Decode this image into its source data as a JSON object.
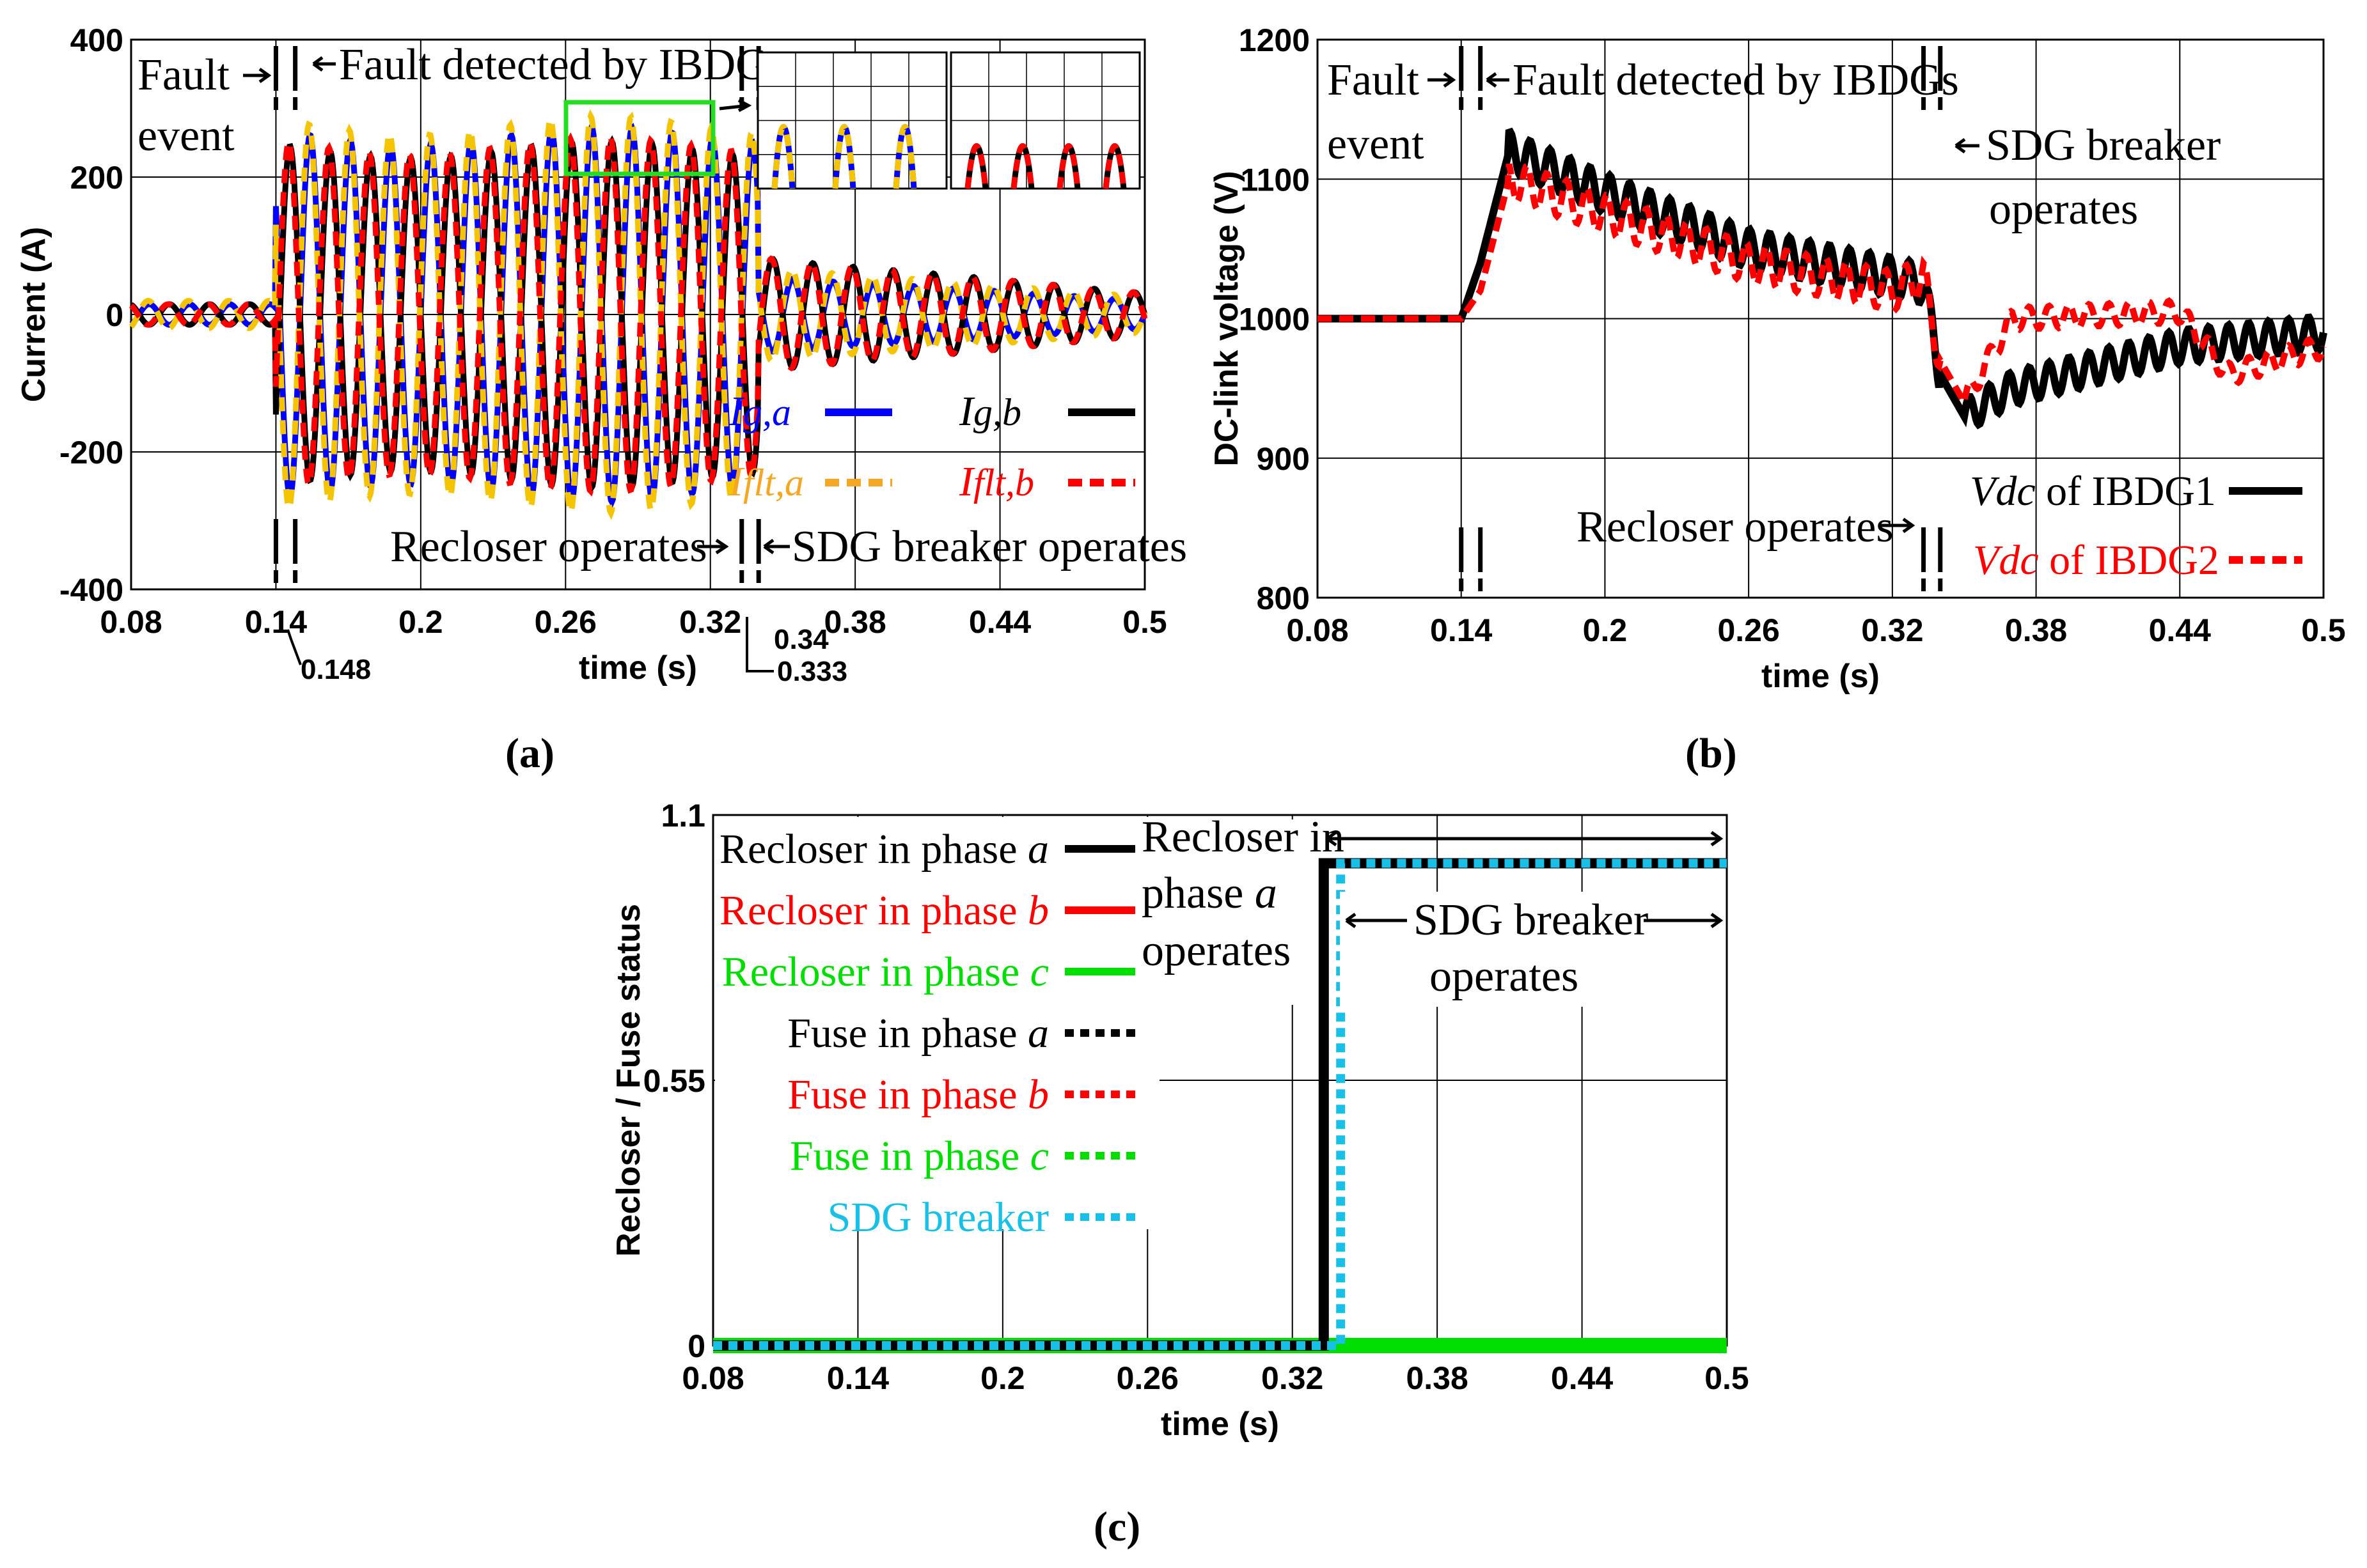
{
  "chart_data": [
    {
      "id": "a",
      "type": "line",
      "caption": "a",
      "xlabel": "time (s)",
      "ylabel": "Current (A)",
      "xlim": [
        0.08,
        0.5
      ],
      "ylim": [
        -400,
        400
      ],
      "xticks": [
        "0.08",
        "0.14",
        "0.2",
        "0.26",
        "0.32",
        "0.38",
        "0.44",
        "0.5"
      ],
      "yticks": [
        "400",
        "200",
        "0",
        "-200",
        "-400"
      ],
      "extra_ticks": [
        "0.148",
        "0.333",
        "0.34"
      ],
      "annotations": {
        "fault_event_1": "Fault",
        "fault_event_2": "event",
        "fault_detected": "Fault detected by IBDGs",
        "recloser": "Recloser operates",
        "sdg": "SDG breaker operates"
      },
      "events": [
        0.14,
        0.148,
        0.333,
        0.34
      ],
      "legend": [
        {
          "sym": "I",
          "sub": "g,a",
          "color": "#0000ff",
          "style": "solid"
        },
        {
          "sym": "I",
          "sub": "g,b",
          "color": "#000000",
          "style": "solid"
        },
        {
          "sym": "I",
          "sub": "flt,a",
          "color": "#f5a623",
          "style": "dashed"
        },
        {
          "sym": "I",
          "sub": "flt,b",
          "color": "#ff0000",
          "style": "dashed"
        }
      ],
      "series": [
        {
          "name": "Ig,a",
          "color": "#0000ff",
          "prefault_amp": 15,
          "fault_amp": 260,
          "postfault_amp": 20
        },
        {
          "name": "Ig,b",
          "color": "#000000",
          "prefault_amp": 15,
          "fault_amp": 240,
          "postfault_amp": 30
        },
        {
          "name": "Iflt,a",
          "color": "#f5c400",
          "prefault_amp": 20,
          "fault_amp": 275,
          "postfault_amp": 25
        },
        {
          "name": "Iflt,b",
          "color": "#ff0000",
          "prefault_amp": 15,
          "fault_amp": 245,
          "postfault_amp": 30
        }
      ],
      "frequency_hz": 60
    },
    {
      "id": "b",
      "type": "line",
      "caption": "b",
      "xlabel": "time (s)",
      "ylabel": "DC-link voltage (V)",
      "xlim": [
        0.08,
        0.5
      ],
      "ylim": [
        800,
        1200
      ],
      "xticks": [
        "0.08",
        "0.14",
        "0.2",
        "0.26",
        "0.32",
        "0.38",
        "0.44",
        "0.5"
      ],
      "yticks": [
        "1200",
        "1100",
        "1000",
        "900",
        "800"
      ],
      "annotations": {
        "fault_event_1": "Fault",
        "fault_event_2": "event",
        "fault_detected": "Fault detected by IBDGs",
        "sdg_1": "SDG breaker",
        "sdg_2": "operates",
        "recloser": "Recloser operates"
      },
      "events": [
        0.14,
        0.148,
        0.333,
        0.34
      ],
      "legend": [
        {
          "sym": "Vdc",
          "rest": " of IBDG1",
          "color": "#000000",
          "style": "solid"
        },
        {
          "sym": "Vdc",
          "rest": " of IBDG2",
          "color": "#ff0000",
          "style": "dashed"
        }
      ],
      "series": [
        {
          "name": "Vdc of IBDG1",
          "color": "#000000",
          "points": [
            [
              0.08,
              1000
            ],
            [
              0.14,
              1000
            ],
            [
              0.148,
              1040
            ],
            [
              0.16,
              1120
            ],
            [
              0.2,
              1090
            ],
            [
              0.26,
              1050
            ],
            [
              0.32,
              1030
            ],
            [
              0.333,
              1025
            ],
            [
              0.34,
              960
            ],
            [
              0.35,
              930
            ],
            [
              0.37,
              950
            ],
            [
              0.44,
              980
            ],
            [
              0.5,
              990
            ]
          ]
        },
        {
          "name": "Vdc of IBDG2",
          "color": "#ff0000",
          "points": [
            [
              0.08,
              1000
            ],
            [
              0.14,
              1000
            ],
            [
              0.148,
              1020
            ],
            [
              0.16,
              1100
            ],
            [
              0.2,
              1075
            ],
            [
              0.26,
              1040
            ],
            [
              0.32,
              1020
            ],
            [
              0.333,
              1030
            ],
            [
              0.34,
              970
            ],
            [
              0.35,
              940
            ],
            [
              0.37,
              1000
            ],
            [
              0.44,
              1005
            ],
            [
              0.46,
              960
            ],
            [
              0.5,
              980
            ]
          ]
        }
      ]
    },
    {
      "id": "c",
      "type": "line",
      "caption": "c",
      "xlabel": "time (s)",
      "ylabel": "Recloser / Fuse status",
      "xlim": [
        0.08,
        0.5
      ],
      "ylim": [
        0,
        1.1
      ],
      "xticks": [
        "0.08",
        "0.14",
        "0.2",
        "0.26",
        "0.32",
        "0.38",
        "0.44",
        "0.5"
      ],
      "yticks": [
        "1.1",
        "0.55",
        "0"
      ],
      "annotations": {
        "recloser_1": "Recloser in",
        "recloser_2": "phase",
        "recloser_2b": "a",
        "recloser_3": "operates",
        "sdg_1": "SDG breaker",
        "sdg_2": "operates"
      },
      "legend": [
        {
          "pre": "Recloser in phase ",
          "ph": "a",
          "color": "#000000",
          "style": "solid"
        },
        {
          "pre": "Recloser in phase ",
          "ph": "b",
          "color": "#ff0000",
          "style": "solid"
        },
        {
          "pre": "Recloser in phase ",
          "ph": "c",
          "color": "#00dd00",
          "style": "solid"
        },
        {
          "pre": "Fuse in phase ",
          "ph": "a",
          "color": "#000000",
          "style": "dotted"
        },
        {
          "pre": "Fuse in phase ",
          "ph": "b",
          "color": "#ff0000",
          "style": "dotted"
        },
        {
          "pre": "Fuse in phase ",
          "ph": "c",
          "color": "#00dd00",
          "style": "dotted"
        },
        {
          "pre": "SDG breaker",
          "ph": "",
          "color": "#18c0e8",
          "style": "dotted"
        }
      ],
      "series": [
        {
          "name": "Recloser in phase a",
          "color": "#000000",
          "step_at": 0.333,
          "low": 0,
          "high": 1
        },
        {
          "name": "SDG breaker",
          "color": "#18c0e8",
          "step_at": 0.34,
          "low": 0,
          "high": 1
        },
        {
          "name": "Recloser in phase c",
          "color": "#00dd00",
          "step_at": null,
          "low": 0,
          "high": 0
        }
      ]
    }
  ]
}
